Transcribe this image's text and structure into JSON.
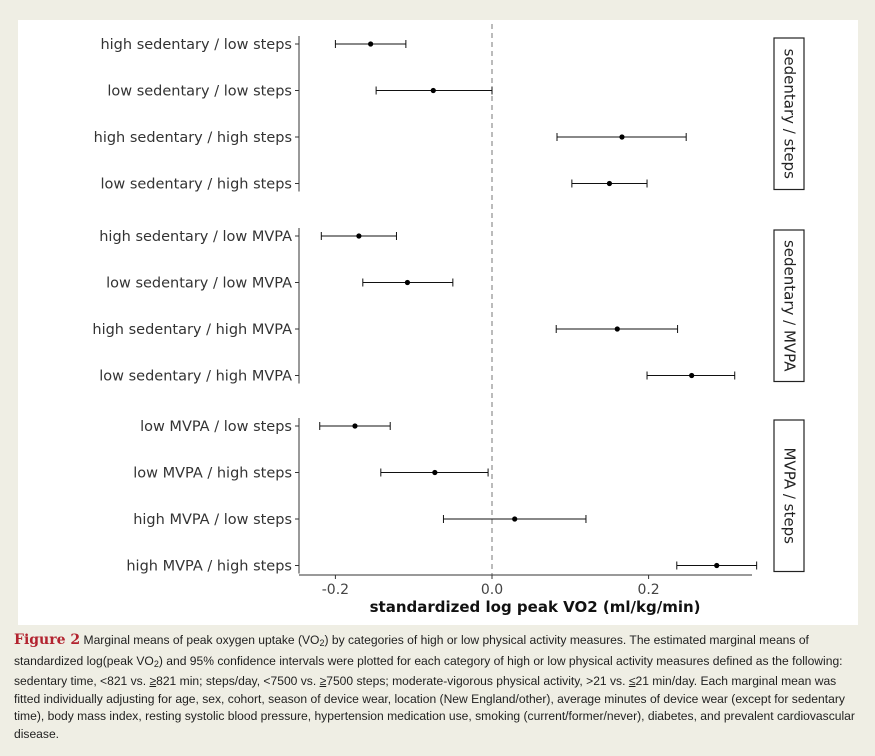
{
  "chart_data": {
    "type": "forest",
    "xlabel": "standardized log peak VO2 (ml/kg/min)",
    "xlim": [
      -0.25,
      0.34
    ],
    "x_ticks": [
      -0.2,
      0.0,
      0.2
    ],
    "x_tick_labels": [
      "-0.2",
      "0.0",
      "0.2"
    ],
    "reference_line": 0.0,
    "panels": [
      {
        "label": "sedentary / steps",
        "rows": [
          {
            "category": "high sedentary / low steps",
            "estimate": -0.155,
            "lower": -0.2,
            "upper": -0.11
          },
          {
            "category": "low sedentary / low steps",
            "estimate": -0.075,
            "lower": -0.148,
            "upper": 0.0
          },
          {
            "category": "high sedentary / high steps",
            "estimate": 0.166,
            "lower": 0.083,
            "upper": 0.248
          },
          {
            "category": "low sedentary / high steps",
            "estimate": 0.15,
            "lower": 0.102,
            "upper": 0.198
          }
        ]
      },
      {
        "label": "sedentary / MVPA",
        "rows": [
          {
            "category": "high sedentary / low MVPA",
            "estimate": -0.17,
            "lower": -0.218,
            "upper": -0.122
          },
          {
            "category": "low sedentary / low MVPA",
            "estimate": -0.108,
            "lower": -0.165,
            "upper": -0.05
          },
          {
            "category": "high sedentary / high MVPA",
            "estimate": 0.16,
            "lower": 0.082,
            "upper": 0.237
          },
          {
            "category": "low sedentary / high MVPA",
            "estimate": 0.255,
            "lower": 0.198,
            "upper": 0.31
          }
        ]
      },
      {
        "label": "MVPA / steps",
        "rows": [
          {
            "category": "low MVPA / low steps",
            "estimate": -0.175,
            "lower": -0.22,
            "upper": -0.13
          },
          {
            "category": "low MVPA / high steps",
            "estimate": -0.073,
            "lower": -0.142,
            "upper": -0.005
          },
          {
            "category": "high MVPA / low steps",
            "estimate": 0.029,
            "lower": -0.062,
            "upper": 0.12
          },
          {
            "category": "high MVPA / high steps",
            "estimate": 0.287,
            "lower": 0.236,
            "upper": 0.338
          }
        ]
      }
    ]
  },
  "caption": {
    "figure_label": "Figure 2",
    "text_1": "Marginal means of peak oxygen uptake (VO",
    "sub_1": "2",
    "text_2": ") by categories of high or low physical activity measures. The estimated marginal means of standardized log(peak VO",
    "sub_2": "2",
    "text_3": ") and 95% confidence intervals were plotted for each category of high or low physical activity measures defined as the following: sedentary time, <821 vs. ",
    "ul_1": "≥",
    "text_4": "821 min; steps/day, <7500 vs. ",
    "ul_2": "≥",
    "text_5": "7500 steps; moderate-vigorous physical activity, >21 vs. ",
    "ul_3": "≤",
    "text_6": "21 min/day. Each marginal mean was fitted individually adjusting for age, sex, cohort, season of device wear, location (New England/other), average minutes of device wear (except for sedentary time), body mass index, resting systolic blood pressure, hypertension medication use, smoking (current/former/never), diabetes, and prevalent cardiovascular disease."
  }
}
